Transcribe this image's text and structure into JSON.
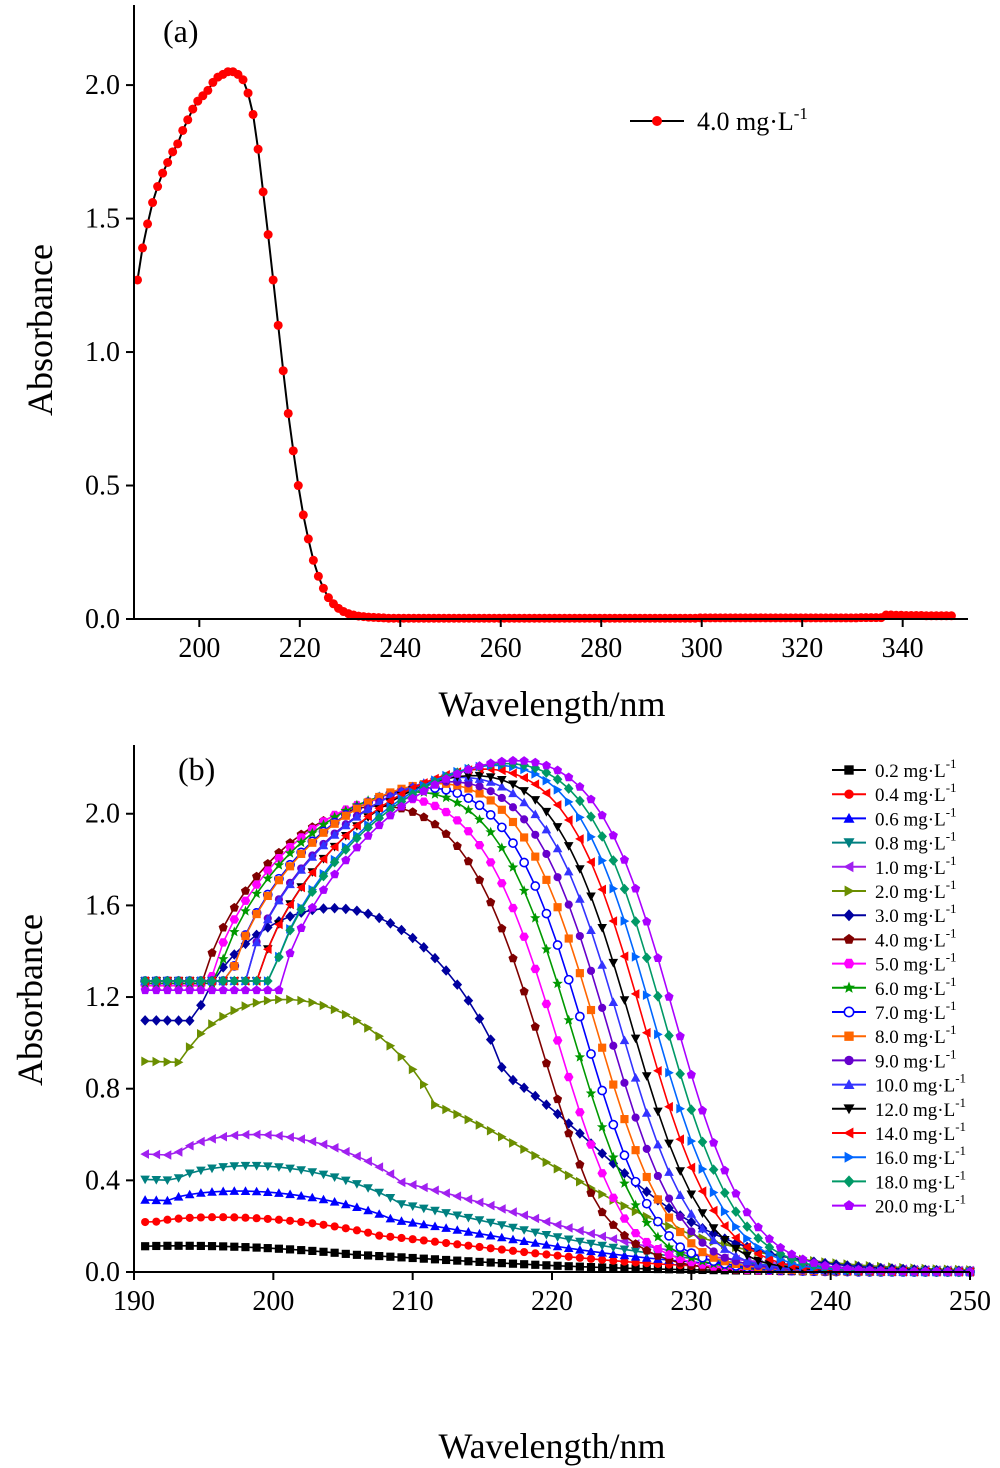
{
  "chart_data": [
    {
      "type": "line",
      "panel_label": "(a)",
      "xlabel": "Wavelength/nm",
      "ylabel": "Absorbance",
      "xlim": [
        187,
        353
      ],
      "ylim": [
        0.0,
        2.3
      ],
      "xticks": [
        200,
        220,
        240,
        260,
        280,
        300,
        320,
        340
      ],
      "yticks": [
        0.0,
        0.5,
        1.0,
        1.5,
        2.0
      ],
      "ytick_labels": [
        "0.0",
        "0.5",
        "1.0",
        "1.5",
        "2.0"
      ],
      "legend_position": "top-right",
      "series": [
        {
          "name": "4.0 mg·L⁻¹",
          "color": "#ff0000",
          "marker": "circle",
          "x_start": 187.7,
          "x_step": 1.0,
          "values": [
            1.27,
            1.39,
            1.48,
            1.56,
            1.62,
            1.67,
            1.71,
            1.75,
            1.78,
            1.83,
            1.87,
            1.91,
            1.94,
            1.96,
            1.98,
            2.01,
            2.03,
            2.04,
            2.05,
            2.05,
            2.04,
            2.02,
            1.97,
            1.89,
            1.76,
            1.6,
            1.44,
            1.27,
            1.1,
            0.93,
            0.77,
            0.63,
            0.5,
            0.39,
            0.3,
            0.22,
            0.16,
            0.115,
            0.08,
            0.057,
            0.04,
            0.028,
            0.02,
            0.015,
            0.011,
            0.009,
            0.007,
            0.006,
            0.005,
            0.004,
            0.003,
            0.003,
            0.003,
            0.003,
            0.003,
            0.003,
            0.003,
            0.003,
            0.003,
            0.003,
            0.003,
            0.003,
            0.003,
            0.003,
            0.003,
            0.003,
            0.003,
            0.003,
            0.003,
            0.003,
            0.003,
            0.003,
            0.003,
            0.003,
            0.003,
            0.003,
            0.003,
            0.003,
            0.003,
            0.003,
            0.003,
            0.003,
            0.003,
            0.003,
            0.003,
            0.003,
            0.003,
            0.003,
            0.003,
            0.003,
            0.003,
            0.003,
            0.003,
            0.003,
            0.003,
            0.003,
            0.003,
            0.003,
            0.003,
            0.003,
            0.003,
            0.003,
            0.003,
            0.003,
            0.003,
            0.003,
            0.003,
            0.003,
            0.003,
            0.003,
            0.003,
            0.003,
            0.004,
            0.004,
            0.004,
            0.004,
            0.004,
            0.004,
            0.004,
            0.004,
            0.004,
            0.004,
            0.004,
            0.004,
            0.004,
            0.004,
            0.004,
            0.004,
            0.004,
            0.004,
            0.004,
            0.004,
            0.004,
            0.004,
            0.004,
            0.004,
            0.004,
            0.004,
            0.004,
            0.004,
            0.004,
            0.004,
            0.004,
            0.004,
            0.005,
            0.005,
            0.005,
            0.005,
            0.005,
            0.015,
            0.015,
            0.014,
            0.014,
            0.013,
            0.013,
            0.013,
            0.013,
            0.012,
            0.012,
            0.012,
            0.012,
            0.012,
            0.012
          ]
        }
      ]
    },
    {
      "type": "line",
      "panel_label": "(b)",
      "xlabel": "Wavelength/nm",
      "ylabel": "Absorbance",
      "xlim": [
        190,
        250
      ],
      "ylim": [
        0.0,
        2.3
      ],
      "xticks": [
        190,
        200,
        210,
        220,
        230,
        240,
        250
      ],
      "yticks": [
        0.0,
        0.4,
        0.8,
        1.2,
        1.6,
        2.0
      ],
      "ytick_labels": [
        "0.0",
        "0.4",
        "0.8",
        "1.2",
        "1.6",
        "2.0"
      ],
      "legend_position": "right",
      "x_start": 190.8,
      "x_end": 250.0,
      "x_step": 0.8,
      "series": [
        {
          "name": "0.2 mg·L⁻¹",
          "color": "#000000",
          "marker": "square",
          "peak": 0.13,
          "start": 0.115,
          "center": 197.5,
          "left_width": 8,
          "edge": 211,
          "slope": 8.0
        },
        {
          "name": "0.4 mg·L⁻¹",
          "color": "#ff0000",
          "marker": "circle",
          "peak": 0.27,
          "start": 0.23,
          "center": 199.5,
          "left_width": 8,
          "edge": 214,
          "slope": 8.0
        },
        {
          "name": "0.6 mg·L⁻¹",
          "color": "#0000ff",
          "marker": "triangle-up",
          "peak": 0.4,
          "start": 0.33,
          "center": 200.5,
          "left_width": 8,
          "edge": 215,
          "slope": 8.0
        },
        {
          "name": "0.8 mg·L⁻¹",
          "color": "#008080",
          "marker": "triangle-down",
          "peak": 0.52,
          "start": 0.42,
          "center": 201,
          "left_width": 8,
          "edge": 216,
          "slope": 7.8
        },
        {
          "name": "1.0 mg·L⁻¹",
          "color": "#a020f0",
          "marker": "triangle-left",
          "peak": 0.66,
          "start": 0.53,
          "center": 201,
          "left_width": 8,
          "edge": 217,
          "slope": 7.5
        },
        {
          "name": "2.0 mg·L⁻¹",
          "color": "#6b8e00",
          "marker": "triangle-right",
          "peak": 1.26,
          "start": 0.93,
          "center": 202.5,
          "left_width": 9,
          "edge": 220,
          "slope": 6.5
        },
        {
          "name": "3.0 mg·L⁻¹",
          "color": "#00009f",
          "marker": "diamond",
          "peak": 1.63,
          "start": 1.1,
          "center": 205.5,
          "left_width": 11,
          "edge": 223,
          "slope": 5.0
        },
        {
          "name": "4.0 mg·L⁻¹",
          "color": "#7f0000",
          "marker": "pentagon",
          "peak": 2.06,
          "start": 1.25,
          "center": 209,
          "left_width": 14,
          "edge": 220,
          "slope": 2.7
        },
        {
          "name": "5.0 mg·L⁻¹",
          "color": "#ff00ff",
          "marker": "hexagon",
          "peak": 2.1,
          "start": 1.25,
          "center": 210.5,
          "left_width": 15,
          "edge": 221,
          "slope": 2.7
        },
        {
          "name": "6.0 mg·L⁻¹",
          "color": "#009900",
          "marker": "star",
          "peak": 2.13,
          "start": 1.26,
          "center": 212,
          "left_width": 16,
          "edge": 222,
          "slope": 2.7
        },
        {
          "name": "7.0 mg·L⁻¹",
          "color": "#0000ff",
          "marker": "circle-open",
          "peak": 2.15,
          "start": 1.27,
          "center": 213,
          "left_width": 16,
          "edge": 222.8,
          "slope": 2.7
        },
        {
          "name": "8.0 mg·L⁻¹",
          "color": "#ff6600",
          "marker": "square",
          "peak": 2.17,
          "start": 1.27,
          "center": 214,
          "left_width": 17,
          "edge": 223.6,
          "slope": 2.7
        },
        {
          "name": "9.0 mg·L⁻¹",
          "color": "#6600cc",
          "marker": "circle",
          "peak": 2.18,
          "start": 1.27,
          "center": 215,
          "left_width": 17,
          "edge": 224.4,
          "slope": 2.7
        },
        {
          "name": "10.0 mg·L⁻¹",
          "color": "#3333ff",
          "marker": "triangle-up",
          "peak": 2.2,
          "start": 1.27,
          "center": 216,
          "left_width": 18,
          "edge": 225.2,
          "slope": 2.7
        },
        {
          "name": "12.0 mg·L⁻¹",
          "color": "#000000",
          "marker": "triangle-down",
          "peak": 2.21,
          "start": 1.27,
          "center": 217,
          "left_width": 18,
          "edge": 226.0,
          "slope": 2.7
        },
        {
          "name": "14.0 mg·L⁻¹",
          "color": "#ff0000",
          "marker": "triangle-left",
          "peak": 2.24,
          "start": 1.27,
          "center": 218,
          "left_width": 19,
          "edge": 226.8,
          "slope": 2.7
        },
        {
          "name": "16.0 mg·L⁻¹",
          "color": "#0066ff",
          "marker": "triangle-right",
          "peak": 2.26,
          "start": 1.27,
          "center": 219,
          "left_width": 19,
          "edge": 227.5,
          "slope": 2.7
        },
        {
          "name": "18.0 mg·L⁻¹",
          "color": "#009966",
          "marker": "diamond",
          "peak": 2.27,
          "start": 1.27,
          "center": 220,
          "left_width": 20,
          "edge": 228.2,
          "slope": 2.7
        },
        {
          "name": "20.0 mg·L⁻¹",
          "color": "#aa00ff",
          "marker": "pentagon",
          "peak": 2.28,
          "start": 1.23,
          "center": 220.5,
          "left_width": 20,
          "edge": 229.0,
          "slope": 2.7
        }
      ]
    }
  ]
}
